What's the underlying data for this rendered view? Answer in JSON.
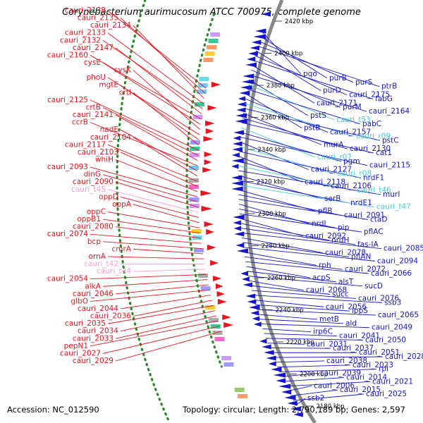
{
  "title": "Corynebacterium aurimucosum ATCC 700975, complete genome",
  "footer": {
    "accession": "Accession: NC_012590",
    "topology": "Topology: circular; Length: 2,790,189 bp; Genes: 2,597"
  },
  "colors": {
    "forward_strand": "#e8141e",
    "reverse_strand": "#1515cc",
    "trna": "#f0a0d0",
    "rrna": "#44ccdd",
    "backbone": "#888888",
    "gc_dots": "#2a8a2a"
  },
  "ruler": [
    "2420 kbp",
    "2400 kbp",
    "2380 kbp",
    "2360 kbp",
    "2340 kbp",
    "2320 kbp",
    "2300 kbp",
    "2280 kbp",
    "2260 kbp",
    "2240 kbp",
    "2220 kbp",
    "2200 kbp",
    "2180 kbp"
  ],
  "labels": {
    "left": [
      {
        "text": "cauri_2138",
        "kind": "forward"
      },
      {
        "text": "cauri_2135",
        "kind": "forward"
      },
      {
        "text": "cauri_2134",
        "kind": "forward"
      },
      {
        "text": "cauri_2133",
        "kind": "forward"
      },
      {
        "text": "cauri_2132",
        "kind": "forward"
      },
      {
        "text": "cauri_2147",
        "kind": "forward"
      },
      {
        "text": "cauri_2160",
        "kind": "forward"
      },
      {
        "text": "cysE",
        "kind": "forward"
      },
      {
        "text": "cysK",
        "kind": "forward"
      },
      {
        "text": "phoU",
        "kind": "forward"
      },
      {
        "text": "mgtE",
        "kind": "forward"
      },
      {
        "text": "crtI",
        "kind": "forward"
      },
      {
        "text": "cauri_2125",
        "kind": "forward"
      },
      {
        "text": "crtB",
        "kind": "forward"
      },
      {
        "text": "cauri_2141",
        "kind": "forward"
      },
      {
        "text": "ccrB",
        "kind": "forward"
      },
      {
        "text": "nadE",
        "kind": "forward"
      },
      {
        "text": "cauri_2104",
        "kind": "forward"
      },
      {
        "text": "cauri_2117",
        "kind": "forward"
      },
      {
        "text": "cauri_2103",
        "kind": "forward"
      },
      {
        "text": "whiH",
        "kind": "forward"
      },
      {
        "text": "cauri_2093",
        "kind": "forward"
      },
      {
        "text": "dinG",
        "kind": "forward"
      },
      {
        "text": "cauri_2090",
        "kind": "forward"
      },
      {
        "text": "cauri_t45",
        "kind": "trna"
      },
      {
        "text": "oppD",
        "kind": "forward"
      },
      {
        "text": "oppA",
        "kind": "forward"
      },
      {
        "text": "oppC",
        "kind": "forward"
      },
      {
        "text": "oppB1",
        "kind": "forward"
      },
      {
        "text": "cauri_2080",
        "kind": "forward"
      },
      {
        "text": "cauri_2074",
        "kind": "forward"
      },
      {
        "text": "bcp",
        "kind": "forward"
      },
      {
        "text": "cmrA",
        "kind": "forward"
      },
      {
        "text": "ornA",
        "kind": "forward"
      },
      {
        "text": "cauri_t42",
        "kind": "trna"
      },
      {
        "text": "cauri_t44",
        "kind": "trna"
      },
      {
        "text": "cauri_2054",
        "kind": "forward"
      },
      {
        "text": "alkA",
        "kind": "forward"
      },
      {
        "text": "cauri_2046",
        "kind": "forward"
      },
      {
        "text": "glbO",
        "kind": "forward"
      },
      {
        "text": "cauri_2044",
        "kind": "forward"
      },
      {
        "text": "cauri_2036",
        "kind": "forward"
      },
      {
        "text": "cauri_2035",
        "kind": "forward"
      },
      {
        "text": "cauri_2034",
        "kind": "forward"
      },
      {
        "text": "cauri_2033",
        "kind": "forward"
      },
      {
        "text": "pepN1",
        "kind": "forward"
      },
      {
        "text": "cauri_2027",
        "kind": "forward"
      },
      {
        "text": "cauri_2029",
        "kind": "forward"
      }
    ],
    "right": [
      {
        "text": "pqo",
        "kind": "reverse"
      },
      {
        "text": "purB",
        "kind": "reverse"
      },
      {
        "text": "purS",
        "kind": "reverse"
      },
      {
        "text": "ptrB",
        "kind": "reverse"
      },
      {
        "text": "purD",
        "kind": "reverse"
      },
      {
        "text": "cauri_2175",
        "kind": "reverse"
      },
      {
        "text": "fabG",
        "kind": "reverse"
      },
      {
        "text": "cauri_2171",
        "kind": "reverse"
      },
      {
        "text": "purM",
        "kind": "reverse"
      },
      {
        "text": "cauri_2164",
        "kind": "reverse"
      },
      {
        "text": "pstS",
        "kind": "reverse"
      },
      {
        "text": "cauri_t53",
        "kind": "rrna"
      },
      {
        "text": "pabC",
        "kind": "reverse"
      },
      {
        "text": "pstB",
        "kind": "reverse"
      },
      {
        "text": "cauri_2157",
        "kind": "reverse"
      },
      {
        "text": "cauri_r09",
        "kind": "rrna"
      },
      {
        "text": "pstC",
        "kind": "reverse"
      },
      {
        "text": "murA",
        "kind": "reverse"
      },
      {
        "text": "cauri_2130",
        "kind": "reverse"
      },
      {
        "text": "cat1",
        "kind": "reverse"
      },
      {
        "text": "cauri_r07",
        "kind": "rrna"
      },
      {
        "text": "pgm",
        "kind": "reverse"
      },
      {
        "text": "cauri_2115",
        "kind": "reverse"
      },
      {
        "text": "cauri_2127",
        "kind": "reverse"
      },
      {
        "text": "cauri_r08",
        "kind": "rrna"
      },
      {
        "text": "nrdF1",
        "kind": "reverse"
      },
      {
        "text": "cauri_2118",
        "kind": "reverse"
      },
      {
        "text": "cauri_2106",
        "kind": "reverse"
      },
      {
        "text": "cauri_t46",
        "kind": "rrna"
      },
      {
        "text": "murI",
        "kind": "reverse"
      },
      {
        "text": "serB",
        "kind": "reverse"
      },
      {
        "text": "nrdE1",
        "kind": "reverse"
      },
      {
        "text": "cauri_t47",
        "kind": "rrna"
      },
      {
        "text": "pflB",
        "kind": "reverse"
      },
      {
        "text": "cauri_2091",
        "kind": "reverse"
      },
      {
        "text": "ctaD",
        "kind": "reverse"
      },
      {
        "text": "nrdI",
        "kind": "reverse"
      },
      {
        "text": "pip",
        "kind": "reverse"
      },
      {
        "text": "pflAC",
        "kind": "reverse"
      },
      {
        "text": "cauri_2092",
        "kind": "reverse"
      },
      {
        "text": "nrdH",
        "kind": "reverse"
      },
      {
        "text": "fas-IA",
        "kind": "reverse"
      },
      {
        "text": "cauri_2085",
        "kind": "reverse"
      },
      {
        "text": "cauri_2078",
        "kind": "reverse"
      },
      {
        "text": "pflAN",
        "kind": "reverse"
      },
      {
        "text": "cauri_2094",
        "kind": "reverse"
      },
      {
        "text": "rph",
        "kind": "reverse"
      },
      {
        "text": "cauri_2072",
        "kind": "reverse"
      },
      {
        "text": "cauri_2066",
        "kind": "reverse"
      },
      {
        "text": "acpS",
        "kind": "reverse"
      },
      {
        "text": "alsT",
        "kind": "reverse"
      },
      {
        "text": "sucD",
        "kind": "reverse"
      },
      {
        "text": "cauri_2068",
        "kind": "reverse"
      },
      {
        "text": "succ",
        "kind": "reverse"
      },
      {
        "text": "cauri_2076",
        "kind": "reverse"
      },
      {
        "text": "ssb3",
        "kind": "reverse"
      },
      {
        "text": "cauri_2056",
        "kind": "reverse"
      },
      {
        "text": "lppS",
        "kind": "reverse"
      },
      {
        "text": "cauri_2065",
        "kind": "reverse"
      },
      {
        "text": "metB",
        "kind": "reverse"
      },
      {
        "text": "ald",
        "kind": "reverse"
      },
      {
        "text": "cauri_2049",
        "kind": "reverse"
      },
      {
        "text": "irp6C",
        "kind": "reverse"
      },
      {
        "text": "cauri_2041",
        "kind": "reverse"
      },
      {
        "text": "cauri_2050",
        "kind": "reverse"
      },
      {
        "text": "cauri_2031",
        "kind": "reverse"
      },
      {
        "text": "cauri_2037",
        "kind": "reverse"
      },
      {
        "text": "cauri_2051",
        "kind": "reverse"
      },
      {
        "text": "cauri_2028",
        "kind": "reverse"
      },
      {
        "text": "cauri_2038",
        "kind": "reverse"
      },
      {
        "text": "cauri_2023",
        "kind": "reverse"
      },
      {
        "text": "rpi",
        "kind": "reverse"
      },
      {
        "text": "cauri_2039",
        "kind": "reverse"
      },
      {
        "text": "cauri_2014",
        "kind": "reverse"
      },
      {
        "text": "cauri_2021",
        "kind": "reverse"
      },
      {
        "text": "cauri_2006",
        "kind": "reverse"
      },
      {
        "text": "cauri_2015",
        "kind": "reverse"
      },
      {
        "text": "cauri_2025",
        "kind": "reverse"
      },
      {
        "text": "ssb2",
        "kind": "reverse"
      }
    ]
  }
}
